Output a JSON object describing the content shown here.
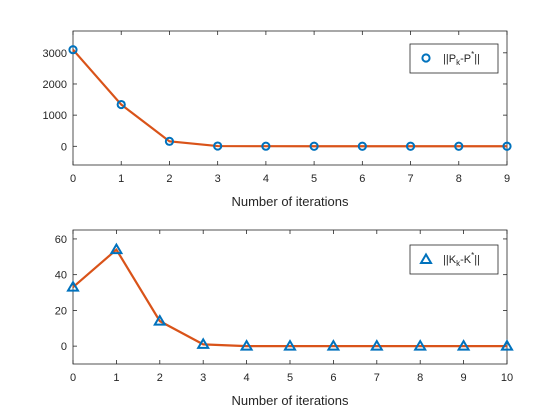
{
  "chart_data": [
    {
      "type": "line",
      "x": [
        0,
        1,
        2,
        3,
        4,
        5,
        6,
        7,
        8,
        9
      ],
      "series": [
        {
          "name": "||P_k-P^*||",
          "marker": "circle",
          "values": [
            3100,
            1340,
            160,
            8,
            3,
            2,
            1,
            1,
            1,
            1
          ]
        }
      ],
      "xlabel": "Number of iterations",
      "ylabel": "",
      "xlim": [
        0,
        9
      ],
      "ylim": [
        -600,
        3700
      ],
      "xticks": [
        "0",
        "1",
        "2",
        "3",
        "4",
        "5",
        "6",
        "7",
        "8",
        "9"
      ],
      "yticks": [
        "0",
        "1000",
        "2000",
        "3000"
      ],
      "grid": false,
      "legend_position": "top-right",
      "line_color": "#D95319",
      "marker_color": "#0072BD"
    },
    {
      "type": "line",
      "x": [
        0,
        1,
        2,
        3,
        4,
        5,
        6,
        7,
        8,
        9,
        10
      ],
      "series": [
        {
          "name": "||K_k-K^*||",
          "marker": "triangle",
          "values": [
            33,
            54,
            14,
            1,
            0,
            0,
            0,
            0,
            0,
            0,
            0
          ]
        }
      ],
      "xlabel": "Number of iterations",
      "ylabel": "",
      "xlim": [
        0,
        10
      ],
      "ylim": [
        -10,
        65
      ],
      "xticks": [
        "0",
        "1",
        "2",
        "3",
        "4",
        "5",
        "6",
        "7",
        "8",
        "9",
        "10"
      ],
      "yticks": [
        "0",
        "20",
        "40",
        "60"
      ],
      "grid": false,
      "legend_position": "top-right",
      "line_color": "#D95319",
      "marker_color": "#0072BD"
    }
  ],
  "legends": [
    {
      "main1": "||P",
      "sub": "k",
      "main2": "-P",
      "sup": "*",
      "main3": "||"
    },
    {
      "main1": "||K",
      "sub": "k",
      "main2": "-K",
      "sup": "*",
      "main3": "||"
    }
  ]
}
